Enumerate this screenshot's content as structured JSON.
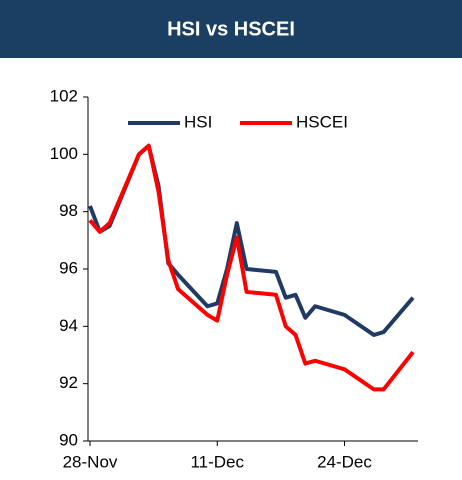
{
  "chart_data": {
    "type": "line",
    "title": "HSI vs HSCEI",
    "x": [
      "28-Nov",
      "29-Nov",
      "30-Nov",
      "3-Dec",
      "4-Dec",
      "5-Dec",
      "6-Dec",
      "7-Dec",
      "10-Dec",
      "11-Dec",
      "12-Dec",
      "13-Dec",
      "14-Dec",
      "17-Dec",
      "18-Dec",
      "19-Dec",
      "20-Dec",
      "21-Dec",
      "24-Dec",
      "27-Dec",
      "28-Dec",
      "31-Dec"
    ],
    "series": [
      {
        "name": "HSI",
        "color": "#1f3a64",
        "values": [
          98.2,
          97.3,
          97.5,
          100.0,
          100.3,
          98.9,
          96.2,
          95.8,
          94.7,
          94.8,
          96.0,
          97.6,
          96.0,
          95.9,
          95.0,
          95.1,
          94.3,
          94.7,
          94.4,
          93.7,
          93.8,
          95.0
        ]
      },
      {
        "name": "HSCEI",
        "color": "#ff0000",
        "values": [
          97.7,
          97.3,
          97.6,
          100.0,
          100.3,
          98.7,
          96.3,
          95.3,
          94.4,
          94.2,
          95.8,
          97.1,
          95.2,
          95.1,
          94.0,
          93.7,
          92.7,
          92.8,
          92.5,
          91.8,
          91.8,
          93.1
        ]
      }
    ],
    "xlim": [
      "28-Nov",
      "31-Dec"
    ],
    "xticks": [
      "28-Nov",
      "11-Dec",
      "24-Dec"
    ],
    "ylim": [
      90,
      102
    ],
    "yticks": [
      90,
      92,
      94,
      96,
      98,
      100,
      102
    ],
    "legend": "top"
  }
}
